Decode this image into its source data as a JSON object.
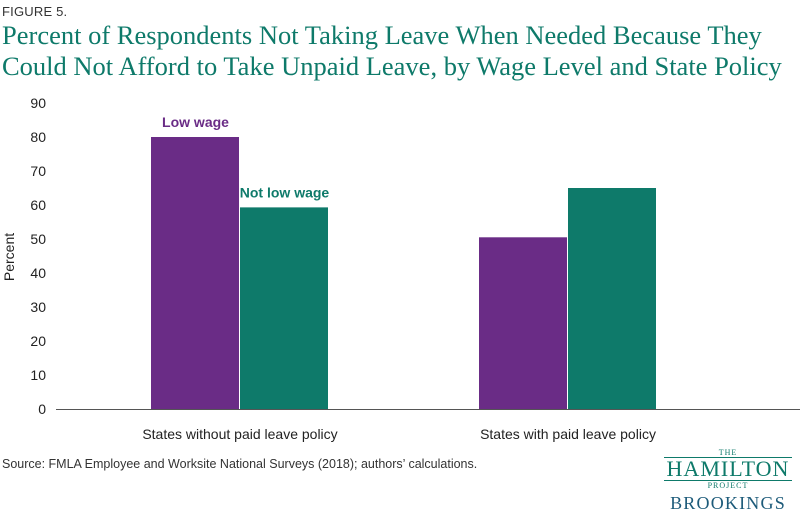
{
  "figure_label": "FIGURE 5.",
  "source_note": "Source:  FMLA Employee and Worksite National Surveys (2018); authors’ calculations.",
  "logo": {
    "the": "THE",
    "hamilton": "HAMILTON",
    "project": "PROJECT",
    "brookings": "BROOKINGS"
  },
  "colors": {
    "title": "#0e7a6a",
    "low_wage": "#6a2c86",
    "not_low_wage": "#0e7a6a"
  },
  "chart_data": {
    "type": "bar",
    "title": "Percent of Respondents Not Taking Leave When Needed Because They Could Not Afford to Take Unpaid Leave, by Wage Level and State Policy",
    "xlabel": "",
    "ylabel": "Percent",
    "ylim": [
      0,
      90
    ],
    "yticks": [
      0,
      10,
      20,
      30,
      40,
      50,
      60,
      70,
      80,
      90
    ],
    "grid": false,
    "categories": [
      "States without paid leave policy",
      "States with paid leave policy"
    ],
    "series": [
      {
        "name": "Low wage",
        "color": "#6a2c86",
        "values": [
          80,
          50.5
        ]
      },
      {
        "name": "Not low wage",
        "color": "#0e7a6a",
        "values": [
          59.3,
          65
        ]
      }
    ]
  }
}
